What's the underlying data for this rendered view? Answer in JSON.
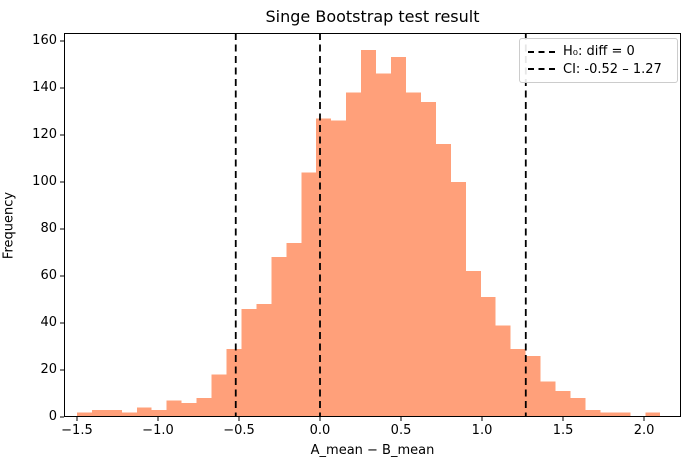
{
  "title": "Singe Bootstrap test result",
  "axes": {
    "xlabel": "A_mean − B_mean",
    "ylabel": "Frequency",
    "x_tick_labels": [
      "−1.5",
      "−1.0",
      "−0.5",
      "0.0",
      "0.5",
      "1.0",
      "1.5",
      "2.0"
    ],
    "x_tick_values": [
      -1.5,
      -1.0,
      -0.5,
      0.0,
      0.5,
      1.0,
      1.5,
      2.0
    ],
    "y_tick_labels": [
      "0",
      "20",
      "40",
      "60",
      "80",
      "100",
      "120",
      "140",
      "160"
    ],
    "y_tick_values": [
      0,
      20,
      40,
      60,
      80,
      100,
      120,
      140,
      160
    ]
  },
  "legend": {
    "entries": [
      {
        "marker": "dashed-line",
        "label": "H₀: diff = 0"
      },
      {
        "marker": "dashed-line",
        "label": "CI: -0.52 – 1.27"
      }
    ]
  },
  "colors": {
    "bar_fill": "#ffa07a",
    "vline": "#000000",
    "spine": "#000000",
    "legend_border": "#cccccc",
    "text": "#000000",
    "background": "#ffffff"
  },
  "chart_data": {
    "type": "bar",
    "subtype": "histogram",
    "title": "Singe Bootstrap test result",
    "xlabel": "A_mean − B_mean",
    "ylabel": "Frequency",
    "bin_start": -1.5,
    "bin_width": 0.0923,
    "counts": [
      2,
      3,
      3,
      2,
      4,
      3,
      7,
      6,
      8,
      18,
      29,
      46,
      48,
      68,
      74,
      104,
      127,
      126,
      138,
      156,
      146,
      153,
      138,
      134,
      116,
      100,
      62,
      51,
      39,
      29,
      26,
      15,
      11,
      8,
      3,
      2,
      2,
      0,
      2
    ],
    "total_samples": 2009,
    "peak_count": 156,
    "vlines": [
      {
        "x": -0.52,
        "style": "dashed"
      },
      {
        "x": 0.0,
        "style": "dashed"
      },
      {
        "x": 1.27,
        "style": "dashed"
      }
    ],
    "h0_diff": 0,
    "ci_lower": -0.52,
    "ci_upper": 1.27,
    "xlim": [
      -1.58,
      2.228
    ],
    "ylim": [
      0,
      163.3
    ],
    "grid": false,
    "legend_position": "upper right"
  }
}
